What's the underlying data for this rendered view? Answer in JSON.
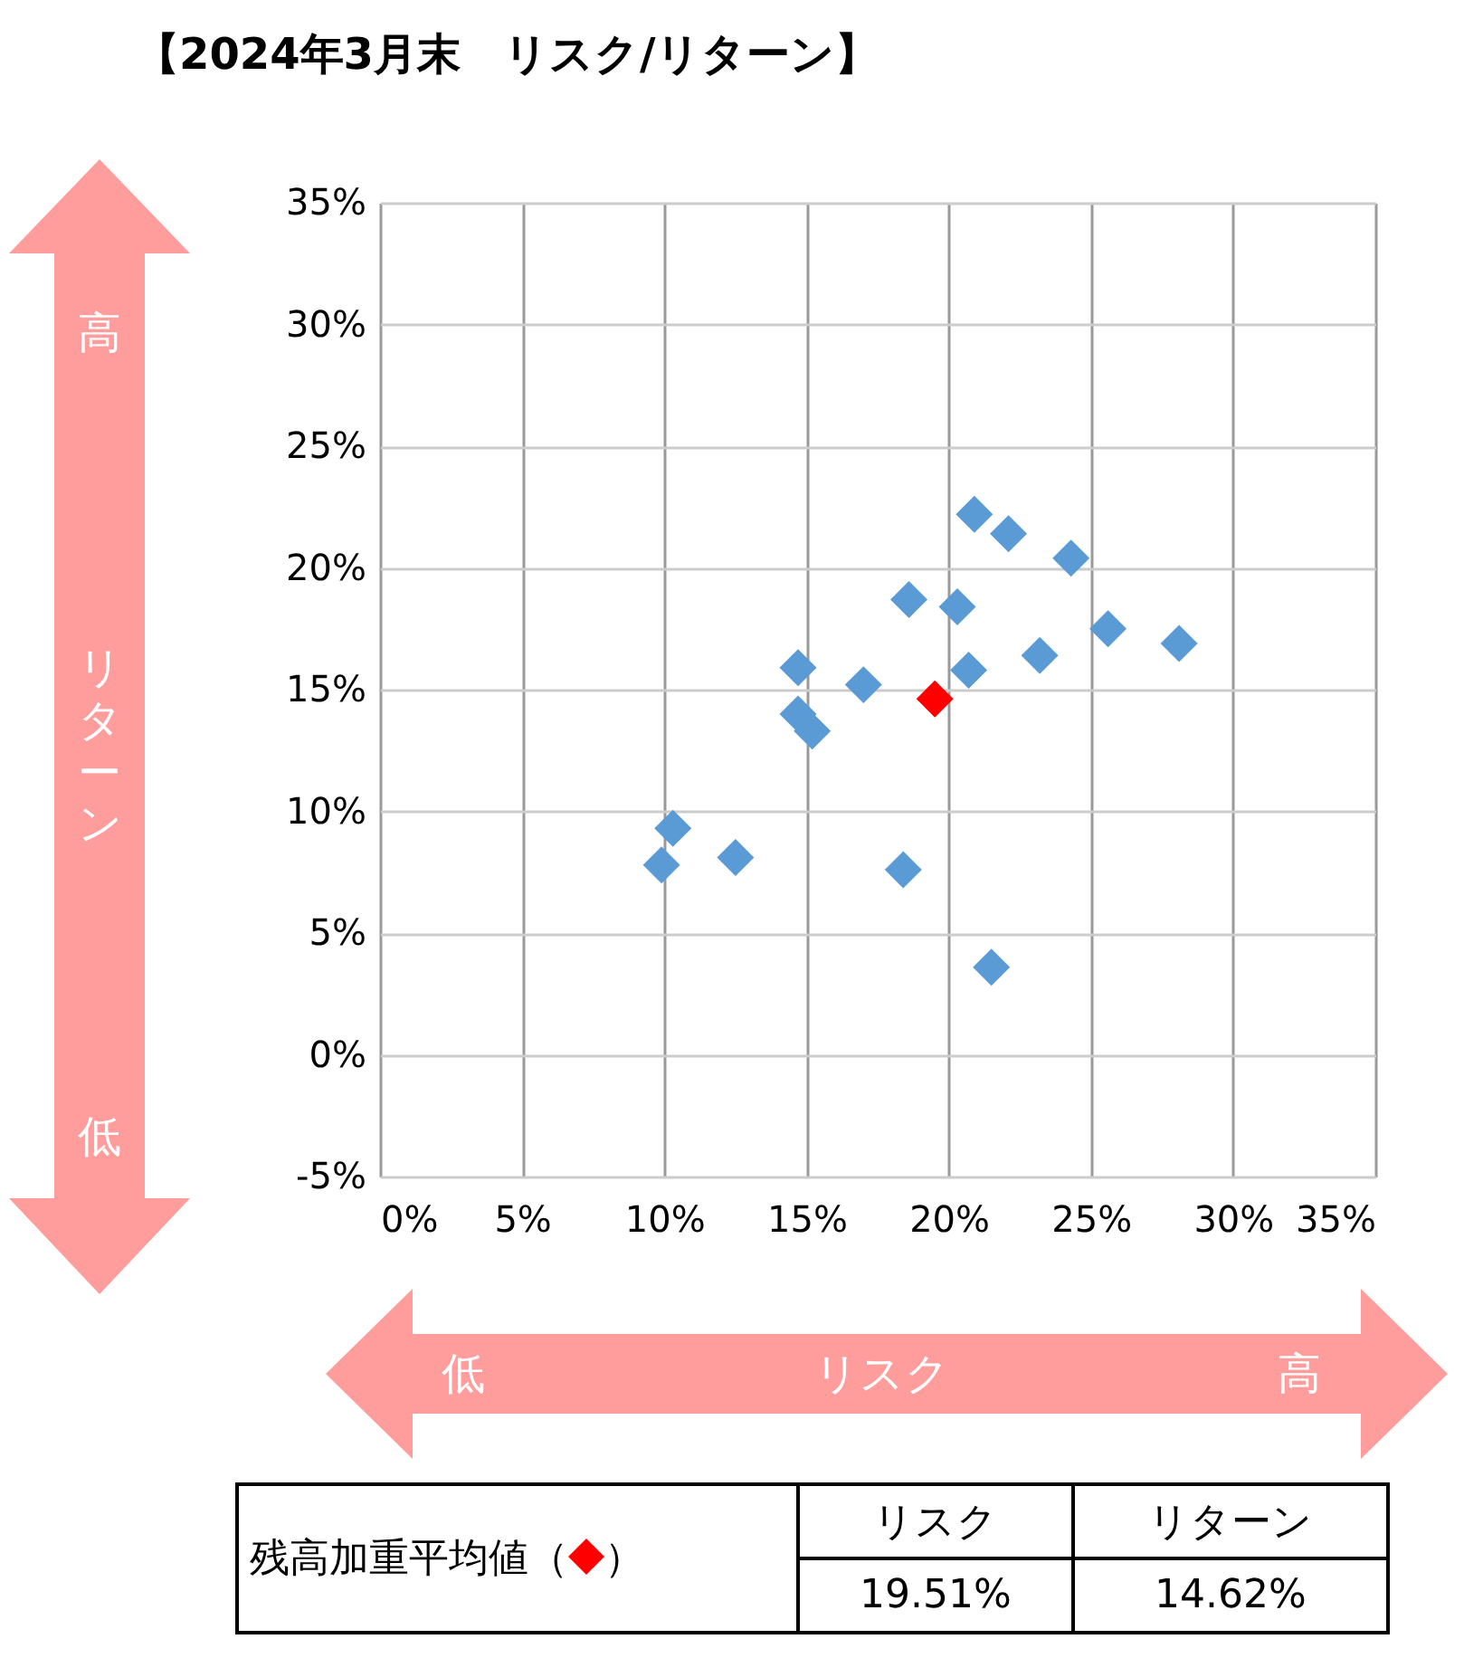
{
  "chart_data": {
    "type": "scatter",
    "title": "【2024年3月末　リスク/リターン】",
    "xlabel": "リスク",
    "ylabel": "リターン",
    "annotations": [
      "高",
      "低",
      "低",
      "高",
      "リスク",
      "リターン",
      "19.51%",
      "14.62%",
      "（",
      "）"
    ],
    "xlim": [
      0,
      35
    ],
    "ylim": [
      -5,
      35
    ],
    "xticks": [
      {
        "value": 0,
        "label": "0%"
      },
      {
        "value": 5,
        "label": "5%"
      },
      {
        "value": 10,
        "label": "10%"
      },
      {
        "value": 15,
        "label": "15%"
      },
      {
        "value": 20,
        "label": "20%"
      },
      {
        "value": 25,
        "label": "25%"
      },
      {
        "value": 30,
        "label": "30%"
      },
      {
        "value": 35,
        "label": "35%"
      }
    ],
    "yticks": [
      {
        "value": -5,
        "label": "-5%"
      },
      {
        "value": 0,
        "label": "0%"
      },
      {
        "value": 5,
        "label": "5%"
      },
      {
        "value": 10,
        "label": "10%"
      },
      {
        "value": 15,
        "label": "15%"
      },
      {
        "value": 20,
        "label": "20%"
      },
      {
        "value": 25,
        "label": "25%"
      },
      {
        "value": 30,
        "label": "30%"
      },
      {
        "value": 35,
        "label": "35%"
      }
    ],
    "grid": true,
    "marker": "diamond",
    "legend": "bottom",
    "series": [
      {
        "color": "#5b9bd5",
        "x": [
          20.9,
          22.1,
          24.3,
          18.6,
          20.3,
          25.6,
          28.1,
          20.7,
          23.2,
          14.7,
          17.0,
          14.7,
          15.2,
          10.3,
          9.9,
          12.5,
          18.4,
          21.5
        ],
        "values": [
          22.2,
          21.4,
          20.4,
          18.7,
          18.4,
          17.5,
          16.9,
          15.8,
          16.4,
          15.9,
          15.2,
          14.0,
          13.3,
          9.3,
          7.8,
          8.1,
          7.6,
          3.6
        ]
      },
      {
        "name": "残高加重平均値",
        "color": "#ff0000",
        "x": [
          19.51
        ],
        "values": [
          14.62
        ]
      }
    ]
  }
}
